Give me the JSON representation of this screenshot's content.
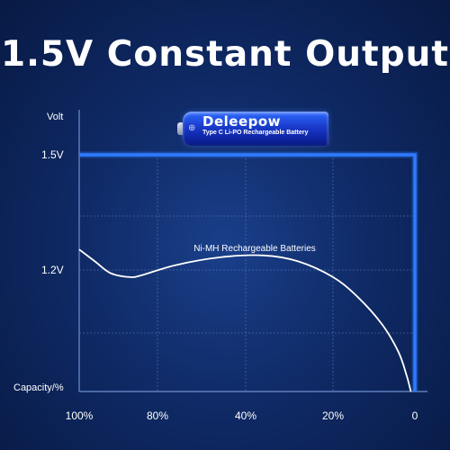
{
  "headline": "1.5V Constant Output",
  "battery": {
    "brand": "Deleepow",
    "subtitle": "Type C Li-PO Rechargeable Battery"
  },
  "colors": {
    "lipo_line": "#2e7bff",
    "nimh_curve": "#ffffff",
    "grid": "#6f8fcf"
  },
  "chart_data": {
    "type": "line",
    "title": "",
    "xlabel": "Capacity/%",
    "ylabel": "Volt",
    "x_ticks": [
      "100%",
      "80%",
      "40%",
      "20%",
      "0"
    ],
    "y_ticks": [
      "1.5V",
      "1.2V"
    ],
    "series": [
      {
        "name": "Type C Li-PO Rechargeable Battery",
        "points": [
          [
            0,
            1.5
          ],
          [
            1,
            1.5
          ],
          [
            2,
            1.5
          ],
          [
            3,
            1.5
          ],
          [
            4,
            1.5
          ],
          [
            4,
            0.9
          ]
        ]
      },
      {
        "name": "Ni-MH Rechargeable Batteries",
        "points": [
          [
            0,
            1.26
          ],
          [
            0.2,
            1.23
          ],
          [
            0.4,
            1.2
          ],
          [
            0.65,
            1.19
          ],
          [
            0.8,
            1.195
          ],
          [
            1.2,
            1.22
          ],
          [
            1.7,
            1.24
          ],
          [
            2.2,
            1.245
          ],
          [
            2.6,
            1.23
          ],
          [
            3.0,
            1.19
          ],
          [
            3.3,
            1.14
          ],
          [
            3.6,
            1.07
          ],
          [
            3.8,
            1.0
          ],
          [
            3.9,
            0.94
          ],
          [
            3.95,
            0.9
          ]
        ]
      }
    ],
    "annotations": [
      "Ni-MH Rechargeable Batteries"
    ]
  }
}
